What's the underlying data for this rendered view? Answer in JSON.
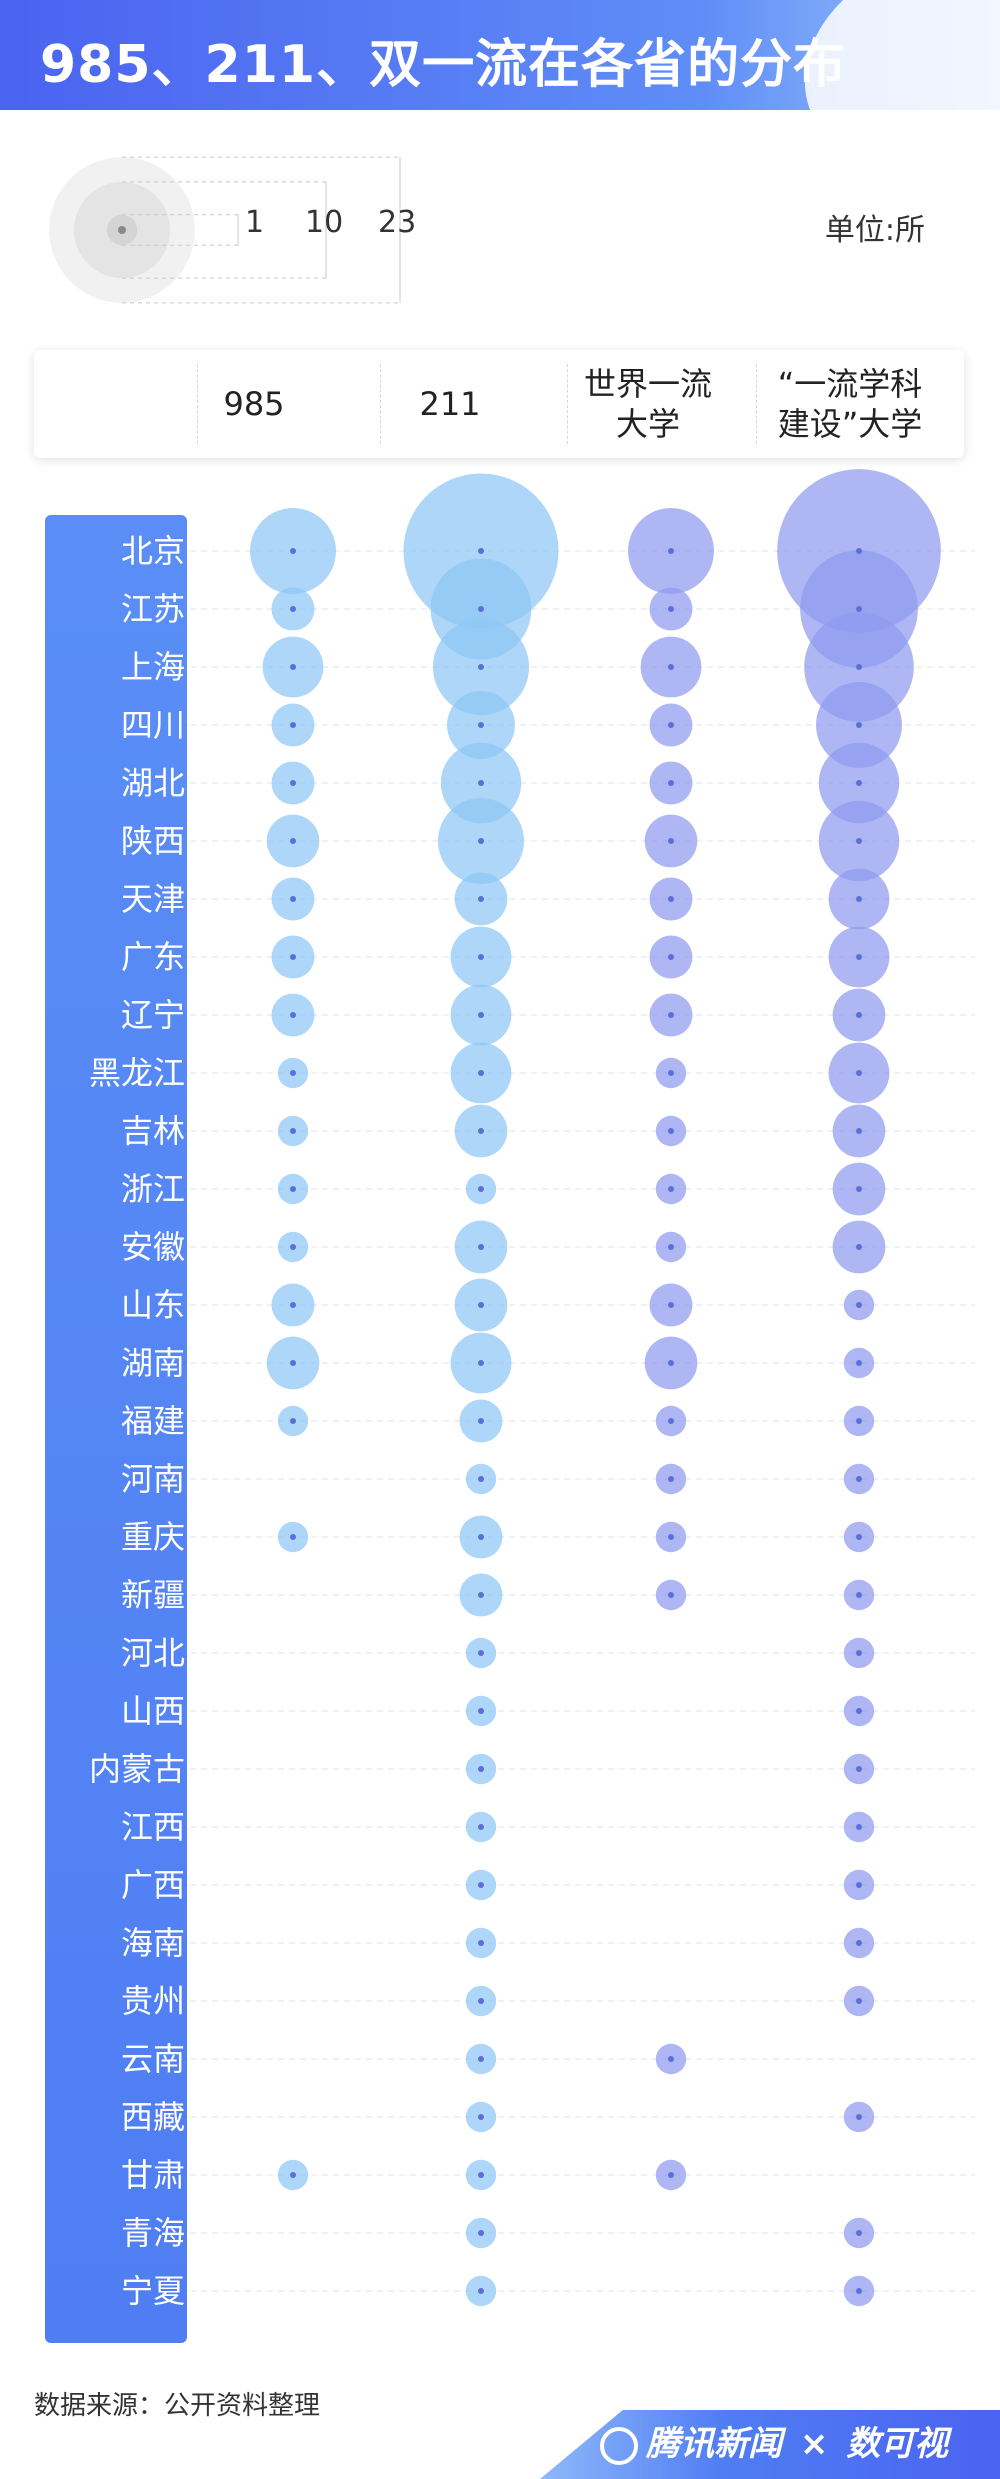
{
  "title": "985、211、双一流在各省的分布",
  "unit_label": "单位:所",
  "legend": {
    "values": [
      1,
      10,
      23
    ]
  },
  "columns": [
    "",
    "985",
    "211",
    "世界一流\n大学",
    "“一流学科\n建设”大学"
  ],
  "source": "数据来源：公开资料整理",
  "footer": {
    "brand": "腾讯新闻",
    "separator": "×",
    "partner": "数可视"
  },
  "colors": {
    "header": "#4a63f0",
    "sidebar": "#5a8ef6",
    "bubble_985_211": "#8ec6f5",
    "bubble_world_class": "#8f9bf0",
    "bubble_discipline": "#8f9bf0",
    "dot": "#5b6fd9"
  },
  "chart_data": {
    "type": "bubble-matrix",
    "title": "985、211、双一流在各省的分布",
    "unit": "单位:所",
    "categories": [
      "北京",
      "江苏",
      "上海",
      "四川",
      "湖北",
      "陕西",
      "天津",
      "广东",
      "辽宁",
      "黑龙江",
      "吉林",
      "浙江",
      "安徽",
      "山东",
      "湖南",
      "福建",
      "河南",
      "重庆",
      "新疆",
      "河北",
      "山西",
      "内蒙古",
      "江西",
      "广西",
      "海南",
      "贵州",
      "云南",
      "西藏",
      "甘肃",
      "青海",
      "宁夏"
    ],
    "series": [
      {
        "name": "985",
        "values": [
          8,
          2,
          4,
          2,
          2,
          3,
          2,
          2,
          2,
          1,
          1,
          1,
          1,
          2,
          3,
          1,
          0,
          1,
          0,
          0,
          0,
          0,
          0,
          0,
          0,
          0,
          0,
          0,
          1,
          0,
          0
        ]
      },
      {
        "name": "211",
        "values": [
          26,
          11,
          10,
          5,
          7,
          8,
          3,
          4,
          4,
          4,
          3,
          1,
          3,
          3,
          4,
          2,
          1,
          2,
          2,
          1,
          1,
          1,
          1,
          1,
          1,
          1,
          1,
          1,
          1,
          1,
          1
        ]
      },
      {
        "name": "世界一流大学",
        "values": [
          8,
          2,
          4,
          2,
          2,
          3,
          2,
          2,
          2,
          1,
          1,
          1,
          1,
          2,
          3,
          1,
          1,
          1,
          1,
          0,
          0,
          0,
          0,
          0,
          0,
          0,
          1,
          0,
          1,
          0,
          0
        ]
      },
      {
        "name": "“一流学科建设”大学",
        "values": [
          29,
          15,
          13,
          8,
          7,
          7,
          4,
          4,
          3,
          4,
          3,
          3,
          3,
          1,
          1,
          1,
          1,
          1,
          1,
          1,
          1,
          1,
          1,
          1,
          1,
          1,
          0,
          1,
          0,
          1,
          1
        ]
      }
    ]
  }
}
